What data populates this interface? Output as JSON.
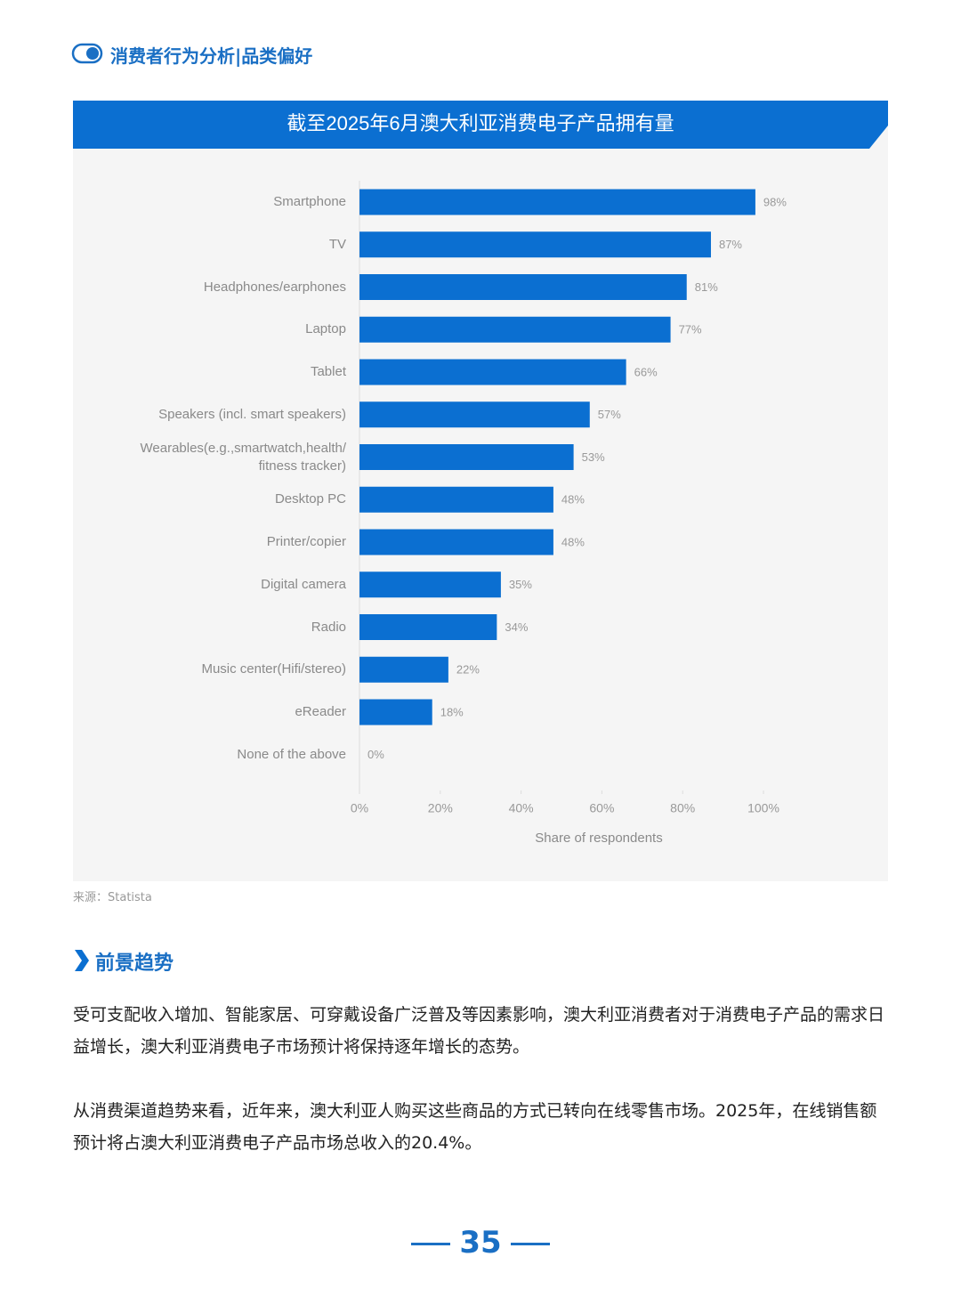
{
  "header": {
    "title": "消费者行为分析|品类偏好"
  },
  "chart_data": {
    "type": "bar",
    "orientation": "horizontal",
    "title": "截至2025年6月澳大利亚消费电子产品拥有量",
    "categories": [
      "Smartphone",
      "TV",
      "Headphones/earphones",
      "Laptop",
      "Tablet",
      "Speakers (incl. smart speakers)",
      "Wearables(e.g.,smartwatch,health/ fitness tracker)",
      "Desktop PC",
      "Printer/copier",
      "Digital camera",
      "Radio",
      "Music center(Hifi/stereo)",
      "eReader",
      "None of the above"
    ],
    "values": [
      98,
      87,
      81,
      77,
      66,
      57,
      53,
      48,
      48,
      35,
      34,
      22,
      18,
      0
    ],
    "value_labels": [
      "98%",
      "87%",
      "81%",
      "77%",
      "66%",
      "57%",
      "53%",
      "48%",
      "48%",
      "35%",
      "34%",
      "22%",
      "18%",
      "0%"
    ],
    "color": "#0b6fd1",
    "xlim": [
      0,
      120
    ],
    "xticks": [
      {
        "value": 0,
        "label": "0%"
      },
      {
        "value": 20,
        "label": "20%"
      },
      {
        "value": 40,
        "label": "40%"
      },
      {
        "value": 60,
        "label": "60%"
      },
      {
        "value": 80,
        "label": "80%"
      },
      {
        "value": 100,
        "label": "100%"
      }
    ],
    "x_label": "Share of respondents",
    "grid": false
  },
  "source": "来源：Statista",
  "section": {
    "title": "前景趋势",
    "paragraphs": [
      "受可支配收入增加、智能家居、可穿戴设备广泛普及等因素影响，澳大利亚消费者对于消费电子产品的需求日益增长，澳大利亚消费电子市场预计将保持逐年增长的态势。",
      "从消费渠道趋势来看，近年来，澳大利亚人购买这些商品的方式已转向在线零售市场。2025年，在线销售额预计将占澳大利亚消费电子产品市场总收入的20.4%。"
    ]
  },
  "page_number": "35"
}
